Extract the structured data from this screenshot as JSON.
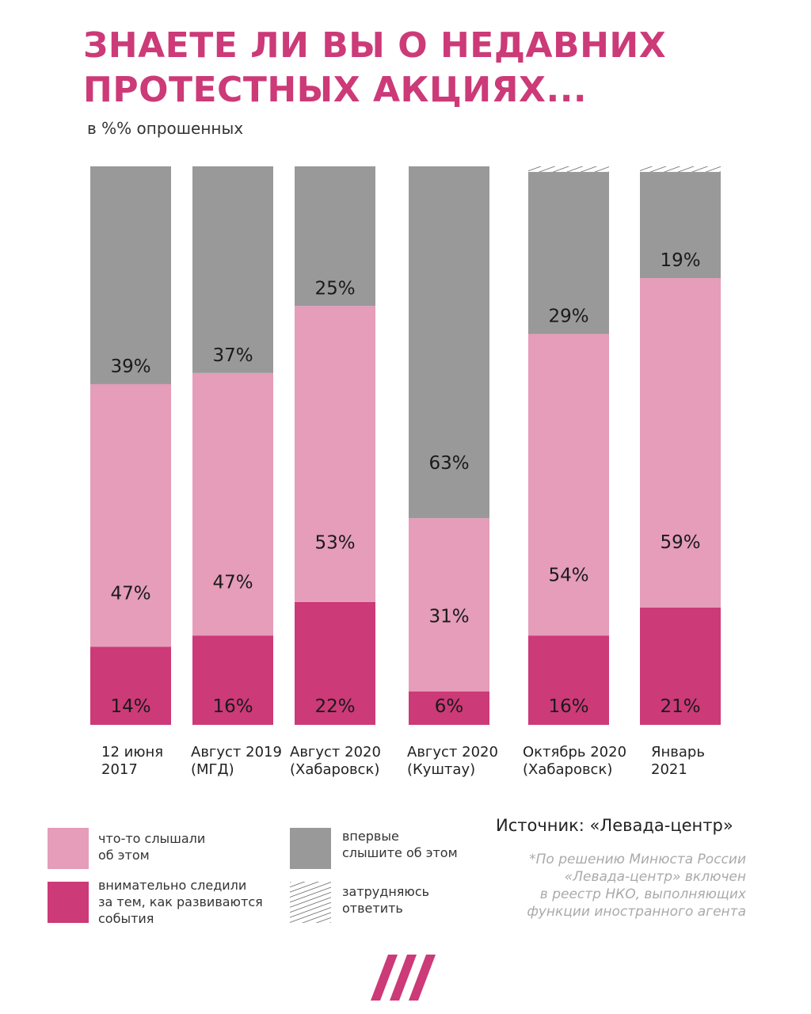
{
  "title": {
    "line1": "ЗНАЕТЕ ЛИ ВЫ О НЕДАВНИХ",
    "line2": "ПРОТЕСТНЫХ АКЦИЯХ..."
  },
  "subtitle": "в %% опрошенных",
  "colors": {
    "heard": "#e59db9",
    "followed": "#cc3a78",
    "first_time": "#999999",
    "title": "#cc3a78"
  },
  "chart_data": {
    "type": "bar",
    "stacked": true,
    "categories": [
      "12 июня 2017",
      "Август 2019 (МГД)",
      "Август 2020 (Хабаровск)",
      "Август 2020 (Куштау)",
      "Октябрь 2020 (Хабаровск)",
      "Январь 2021"
    ],
    "category_lines": [
      [
        "12 июня",
        "2017"
      ],
      [
        "Август 2019",
        "(МГД)"
      ],
      [
        "Август 2020",
        "(Хабаровск)"
      ],
      [
        "Август 2020",
        "(Куштау)"
      ],
      [
        "Октябрь 2020",
        "(Хабаровск)"
      ],
      [
        "Январь",
        "2021"
      ]
    ],
    "series": [
      {
        "name": "внимательно следили за тем, как развиваются события",
        "color": "#cc3a78",
        "values": [
          14,
          16,
          22,
          6,
          16,
          21
        ]
      },
      {
        "name": "что-то слышали об этом",
        "color": "#e59db9",
        "values": [
          47,
          47,
          53,
          31,
          54,
          59
        ]
      },
      {
        "name": "впервые слышите об этом",
        "color": "#999999",
        "values": [
          39,
          37,
          25,
          63,
          29,
          19
        ]
      },
      {
        "name": "затрудняюсь ответить",
        "pattern": "hatch",
        "values": [
          0,
          0,
          0,
          0,
          1,
          1
        ]
      }
    ],
    "data_labels": [
      [
        "14%",
        "47%",
        "39%"
      ],
      [
        "16%",
        "47%",
        "37%"
      ],
      [
        "22%",
        "53%",
        "25%"
      ],
      [
        "6%",
        "31%",
        "63%"
      ],
      [
        "16%",
        "54%",
        "29%"
      ],
      [
        "21%",
        "59%",
        "19%"
      ]
    ],
    "ylim": [
      0,
      100
    ],
    "legend_position": "bottom-left"
  },
  "legend": [
    {
      "lines": [
        "что-то слышали",
        "об этом"
      ],
      "color": "#e59db9"
    },
    {
      "lines": [
        "внимательно следили",
        "за тем, как развиваются",
        "события"
      ],
      "color": "#cc3a78"
    },
    {
      "lines": [
        "впервые",
        "слышите об этом"
      ],
      "color": "#999999"
    },
    {
      "lines": [
        "затрудняюсь",
        "ответить"
      ],
      "pattern": "hatch"
    }
  ],
  "source": "Источник: «Левада-центр»",
  "note": {
    "lines": [
      "*По решению Минюста России",
      "«Левада-центр» включен",
      "в реестр НКО, выполняющих",
      "функции иностранного агента"
    ]
  }
}
